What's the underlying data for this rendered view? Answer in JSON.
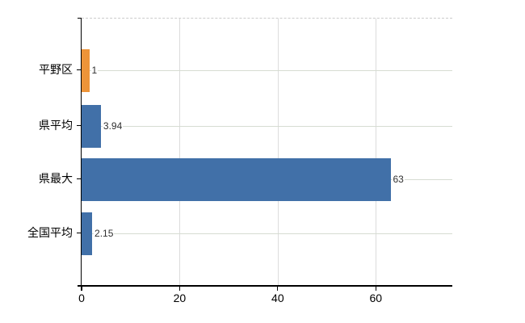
{
  "chart_data": {
    "type": "bar",
    "orientation": "horizontal",
    "title": "",
    "xlabel": "",
    "ylabel": "",
    "categories": [
      "平野区",
      "県平均",
      "県最大",
      "全国平均"
    ],
    "values": [
      1,
      3.94,
      63,
      2.15
    ],
    "value_labels": [
      "1",
      "3.94",
      "63",
      "2.15"
    ],
    "bar_names": [
      "bar-hirano-ku",
      "bar-prefecture-average",
      "bar-prefecture-max",
      "bar-national-average"
    ],
    "bar_colors": [
      "#ed9439",
      "#4170a8",
      "#4170a8",
      "#4170a8"
    ],
    "xticks": [
      0,
      20,
      40,
      60
    ],
    "xtick_labels": [
      "0",
      "20",
      "40",
      "60"
    ],
    "xlim": [
      0,
      75.6
    ],
    "grid": true,
    "legend": false
  },
  "colors": {
    "bar_blue": "#4170a8",
    "bar_orange": "#ed9439",
    "axis": "#000000",
    "gridline_horizontal": "#d6dcd2",
    "gridline_vertical": "#dcdcdc",
    "plot_top_border": "#cccccc",
    "value_label_text": "#303030",
    "tick_label_text": "#000000"
  }
}
